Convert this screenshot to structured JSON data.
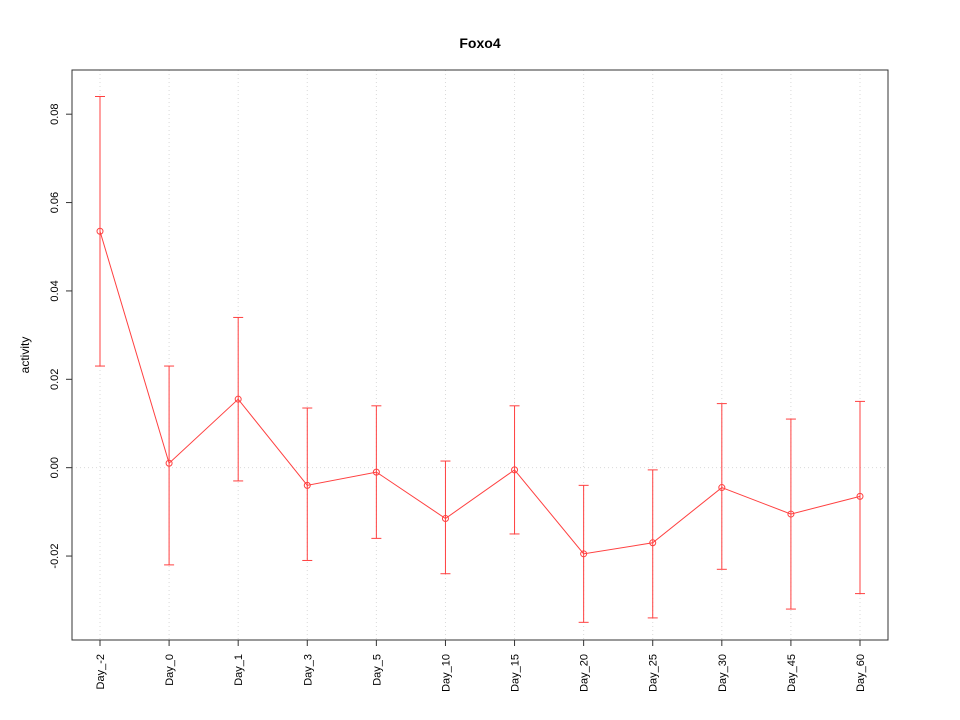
{
  "title": "Foxo4",
  "chart_data": {
    "type": "line",
    "title": "Foxo4",
    "xlabel": "",
    "ylabel": "activity",
    "categories": [
      "Day_-2",
      "Day_0",
      "Day_1",
      "Day_3",
      "Day_5",
      "Day_10",
      "Day_15",
      "Day_20",
      "Day_25",
      "Day_30",
      "Day_45",
      "Day_60"
    ],
    "series": [
      {
        "name": "Foxo4",
        "values": [
          0.0535,
          0.001,
          0.0155,
          -0.004,
          -0.001,
          -0.0115,
          -0.0005,
          -0.0195,
          -0.017,
          -0.0045,
          -0.0105,
          -0.0065
        ],
        "upper": [
          0.084,
          0.023,
          0.034,
          0.0135,
          0.014,
          0.0015,
          0.014,
          -0.004,
          -0.0005,
          0.0145,
          0.011,
          0.015
        ],
        "lower": [
          0.023,
          -0.022,
          -0.003,
          -0.021,
          -0.016,
          -0.024,
          -0.015,
          -0.035,
          -0.034,
          -0.023,
          -0.032,
          -0.0285
        ]
      }
    ],
    "ylim": [
      -0.039,
      0.09
    ],
    "yticks": [
      -0.02,
      0,
      0.02,
      0.04,
      0.06,
      0.08
    ],
    "ytick_labels": [
      "-0.02",
      "0.00",
      "0.02",
      "0.04",
      "0.06",
      "0.08"
    ],
    "legend": "none",
    "grid": {
      "vertical": "per-category",
      "horizontal_at": 0,
      "style": "dotted"
    },
    "colors": {
      "series": "#ff4040",
      "grid": "#d9d9d9",
      "axis": "#333333",
      "text": "#000000",
      "background": "#ffffff"
    }
  }
}
